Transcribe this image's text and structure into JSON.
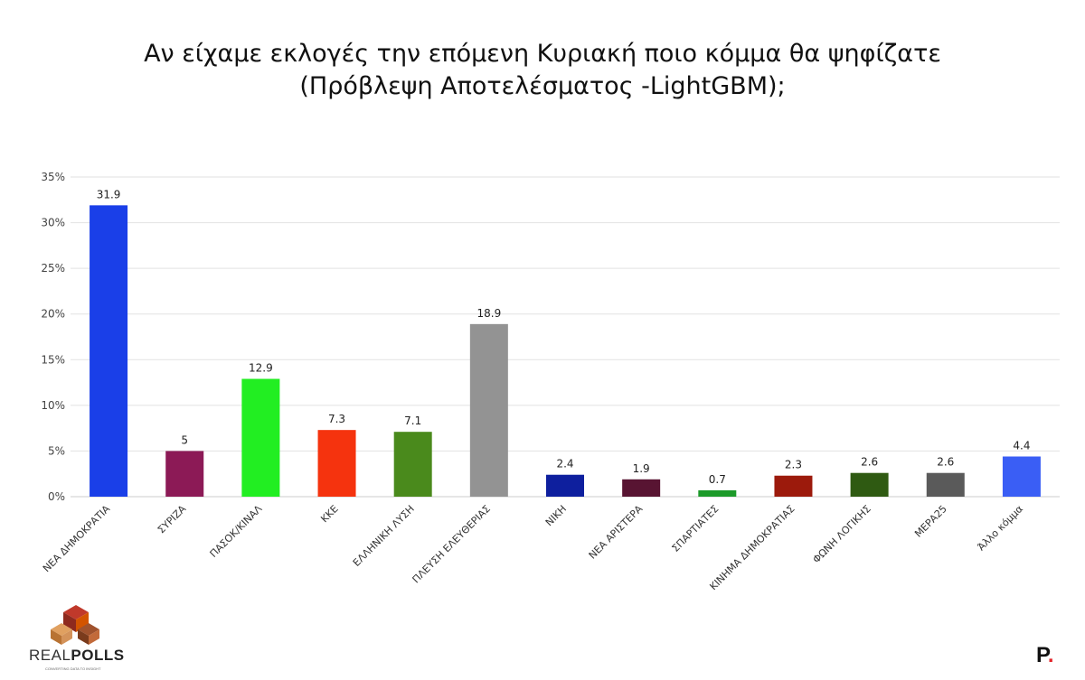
{
  "chart_data": {
    "type": "bar",
    "title_lines": [
      "Αν είχαμε εκλογές την επόμενη Κυριακή ποιο κόμμα θα ψηφίζατε",
      "(Πρόβλεψη Αποτελέσματος -LightGBM);"
    ],
    "xlabel": "",
    "ylabel": "",
    "ylim": [
      0,
      35
    ],
    "yticks": [
      0,
      5,
      10,
      15,
      20,
      25,
      30,
      35
    ],
    "ytick_labels": [
      "0%",
      "5%",
      "10%",
      "15%",
      "20%",
      "25%",
      "30%",
      "35%"
    ],
    "grid": true,
    "legend": "none",
    "categories": [
      "ΝΕΑ ΔΗΜΟΚΡΑΤΙΑ",
      "ΣΥΡΙΖΑ",
      "ΠΑΣΟΚ/ΚΙΝΑΛ",
      "ΚΚΕ",
      "ΕΛΛΗΝΙΚΗ ΛΥΣΗ",
      "ΠΛΕΥΣΗ ΕΛΕΥΘΕΡΙΑΣ",
      "ΝΙΚΗ",
      "ΝΕΑ ΑΡΙΣΤΕΡΑ",
      "ΣΠΑΡΤΙΑΤΕΣ",
      "ΚΙΝΗΜΑ ΔΗΜΟΚΡΑΤΙΑΣ",
      "ΦΩΝΗ ΛΟΓΙΚΗΣ",
      "ΜΕΡΑ25",
      "Άλλο κόμμα"
    ],
    "values": [
      31.9,
      5,
      12.9,
      7.3,
      7.1,
      18.9,
      2.4,
      1.9,
      0.7,
      2.3,
      2.6,
      2.6,
      4.4
    ],
    "value_labels": [
      "31.9",
      "5",
      "12.9",
      "7.3",
      "7.1",
      "18.9",
      "2.4",
      "1.9",
      "0.7",
      "2.3",
      "2.6",
      "2.6",
      "4.4"
    ],
    "colors": [
      "#1a3fe8",
      "#8c1a56",
      "#22ee22",
      "#f5330e",
      "#4a8a1c",
      "#939393",
      "#0e1f9e",
      "#581432",
      "#1c9a2a",
      "#9c1a0c",
      "#2f5a12",
      "#5a5a5a",
      "#3a5ef5"
    ],
    "grid_color": "#e2e2e2",
    "axis_color": "#cccccc"
  },
  "branding": {
    "logo_text_light": "REAL",
    "logo_text_bold": "POLLS",
    "logo_tagline": "CONVERTING DATA TO INSIGHT",
    "mark_letter": "P",
    "mark_dot": "."
  }
}
